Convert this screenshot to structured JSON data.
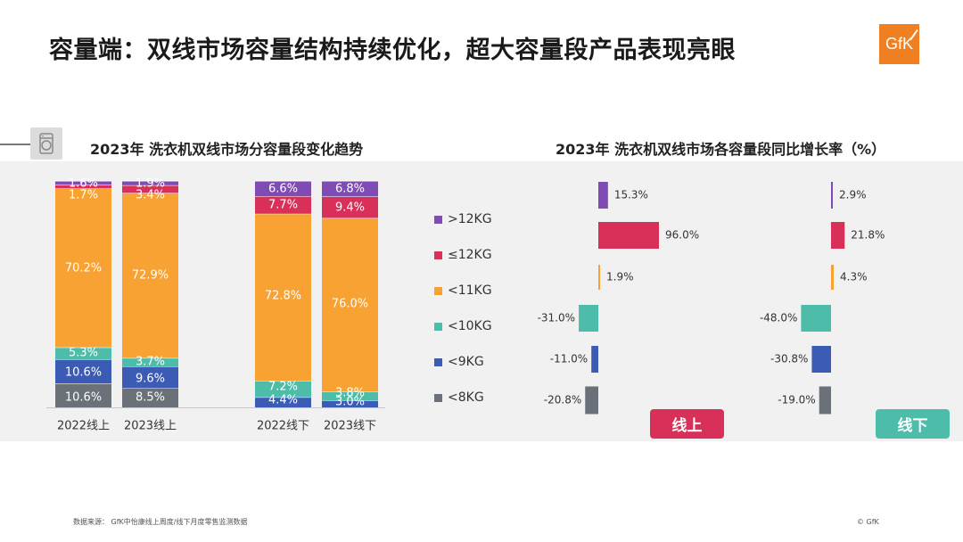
{
  "page": {
    "title": "容量端：双线市场容量结构持续优化，超大容量段产品表现亮眼",
    "logo_text": "GfK",
    "left_subtitle": "2023年 洗衣机双线市场分容量段变化趋势",
    "right_subtitle": "2023年 洗衣机双线市场各容量段同比增长率（%）",
    "tag_online": "线上",
    "tag_offline": "线下",
    "footer_source": "数据来源： GfK中怡康线上周度/线下月度零售监测数据",
    "footer_copyright": "© GfK"
  },
  "colors": {
    "gt12": "#7f4bb5",
    "le12": "#d9305a",
    "lt11": "#f7a233",
    "lt10": "#4dbdaa",
    "lt9": "#3b5bb5",
    "lt8": "#6a7178",
    "online": "#d9305a",
    "offline": "#4dbdaa",
    "band": "#f1f1f1"
  },
  "legend": [
    {
      "key": "gt12",
      "label": ">12KG"
    },
    {
      "key": "le12",
      "label": "≤12KG"
    },
    {
      "key": "lt11",
      "label": "<11KG"
    },
    {
      "key": "lt10",
      "label": "<10KG"
    },
    {
      "key": "lt9",
      "label": "<9KG"
    },
    {
      "key": "lt8",
      "label": "<8KG"
    }
  ],
  "chart_data": [
    {
      "type": "bar",
      "stacked": true,
      "title": "2023年 洗衣机双线市场分容量段变化趋势",
      "categories": [
        "2022线上",
        "2023线上",
        "2022线下",
        "2023线下"
      ],
      "series_order": [
        "lt8",
        "lt9",
        "lt10",
        "lt11",
        "le12",
        "gt12"
      ],
      "series": [
        {
          "key": "lt8",
          "name": "<8KG",
          "values": [
            10.6,
            8.5,
            null,
            null
          ],
          "labels": [
            "10.6%",
            "8.5%",
            "",
            ""
          ]
        },
        {
          "key": "lt9",
          "name": "<9KG",
          "values": [
            10.6,
            9.6,
            4.4,
            3.0
          ],
          "labels": [
            "10.6%",
            "9.6%",
            "4.4%",
            "3.0%"
          ]
        },
        {
          "key": "lt10",
          "name": "<10KG",
          "values": [
            5.3,
            3.7,
            7.2,
            3.8
          ],
          "labels": [
            "5.3%",
            "3.7%",
            "7.2%",
            "3.8%"
          ]
        },
        {
          "key": "lt11",
          "name": "<11KG",
          "values": [
            70.2,
            72.9,
            72.8,
            76.0
          ],
          "labels": [
            "70.2%",
            "72.9%",
            "72.8%",
            "76.0%"
          ]
        },
        {
          "key": "le12",
          "name": "≤12KG",
          "values": [
            1.7,
            3.4,
            7.7,
            9.4
          ],
          "labels": [
            "1.7%",
            "3.4%",
            "7.7%",
            "9.4%"
          ]
        },
        {
          "key": "gt12",
          "name": ">12KG",
          "values": [
            1.6,
            1.9,
            6.6,
            6.8
          ],
          "labels": [
            "1.6%",
            "1.9%",
            "6.6%",
            "6.8%"
          ]
        }
      ],
      "ylim": [
        0,
        100
      ],
      "unit": "%"
    },
    {
      "type": "bar",
      "orientation": "horizontal",
      "title": "2023年 洗衣机双线市场各容量段同比增长率（%）",
      "categories": [
        ">12KG",
        "≤12KG",
        "<11KG",
        "<10KG",
        "<9KG",
        "<8KG"
      ],
      "category_keys": [
        "gt12",
        "le12",
        "lt11",
        "lt10",
        "lt9",
        "lt8"
      ],
      "panels": [
        {
          "name": "线上",
          "values": [
            15.3,
            96.0,
            1.9,
            -31.0,
            -11.0,
            -20.8
          ],
          "labels": [
            "15.3%",
            "96.0%",
            "1.9%",
            "-31.0%",
            "-11.0%",
            "-20.8%"
          ]
        },
        {
          "name": "线下",
          "values": [
            2.9,
            21.8,
            4.3,
            -48.0,
            -30.8,
            -19.0
          ],
          "labels": [
            "2.9%",
            "21.8%",
            "4.3%",
            "-48.0%",
            "-30.8%",
            "-19.0%"
          ]
        }
      ],
      "unit": "%"
    }
  ]
}
